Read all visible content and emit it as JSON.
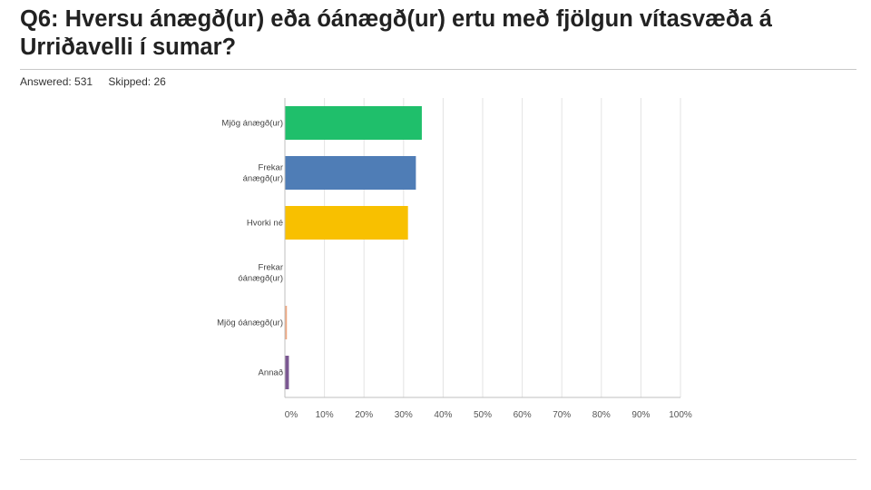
{
  "question": {
    "title": "Q6: Hversu ánægð(ur) eða óánægð(ur) ertu með fjölgun vítasvæða á Urriðavelli í sumar?",
    "answered_label": "Answered: 531",
    "skipped_label": "Skipped: 26"
  },
  "chart_data": {
    "type": "bar",
    "orientation": "horizontal",
    "categories": [
      [
        "Mjög ánægð(ur)"
      ],
      [
        "Frekar",
        "ánægð(ur)"
      ],
      [
        "Hvorki né"
      ],
      [
        "Frekar",
        "óánægð(ur)"
      ],
      [
        "Mjög óánægð(ur)"
      ],
      [
        "Annað"
      ]
    ],
    "values": [
      34.5,
      33.0,
      31.0,
      0.0,
      0.4,
      0.9
    ],
    "colors": [
      "#1fbf6b",
      "#4f7db6",
      "#f8c000",
      "#d77a62",
      "#f0a882",
      "#7b5892"
    ],
    "xlim": [
      0,
      100
    ],
    "xticks": [
      "0%",
      "10%",
      "20%",
      "30%",
      "40%",
      "50%",
      "60%",
      "70%",
      "80%",
      "90%",
      "100%"
    ],
    "grid": true
  }
}
